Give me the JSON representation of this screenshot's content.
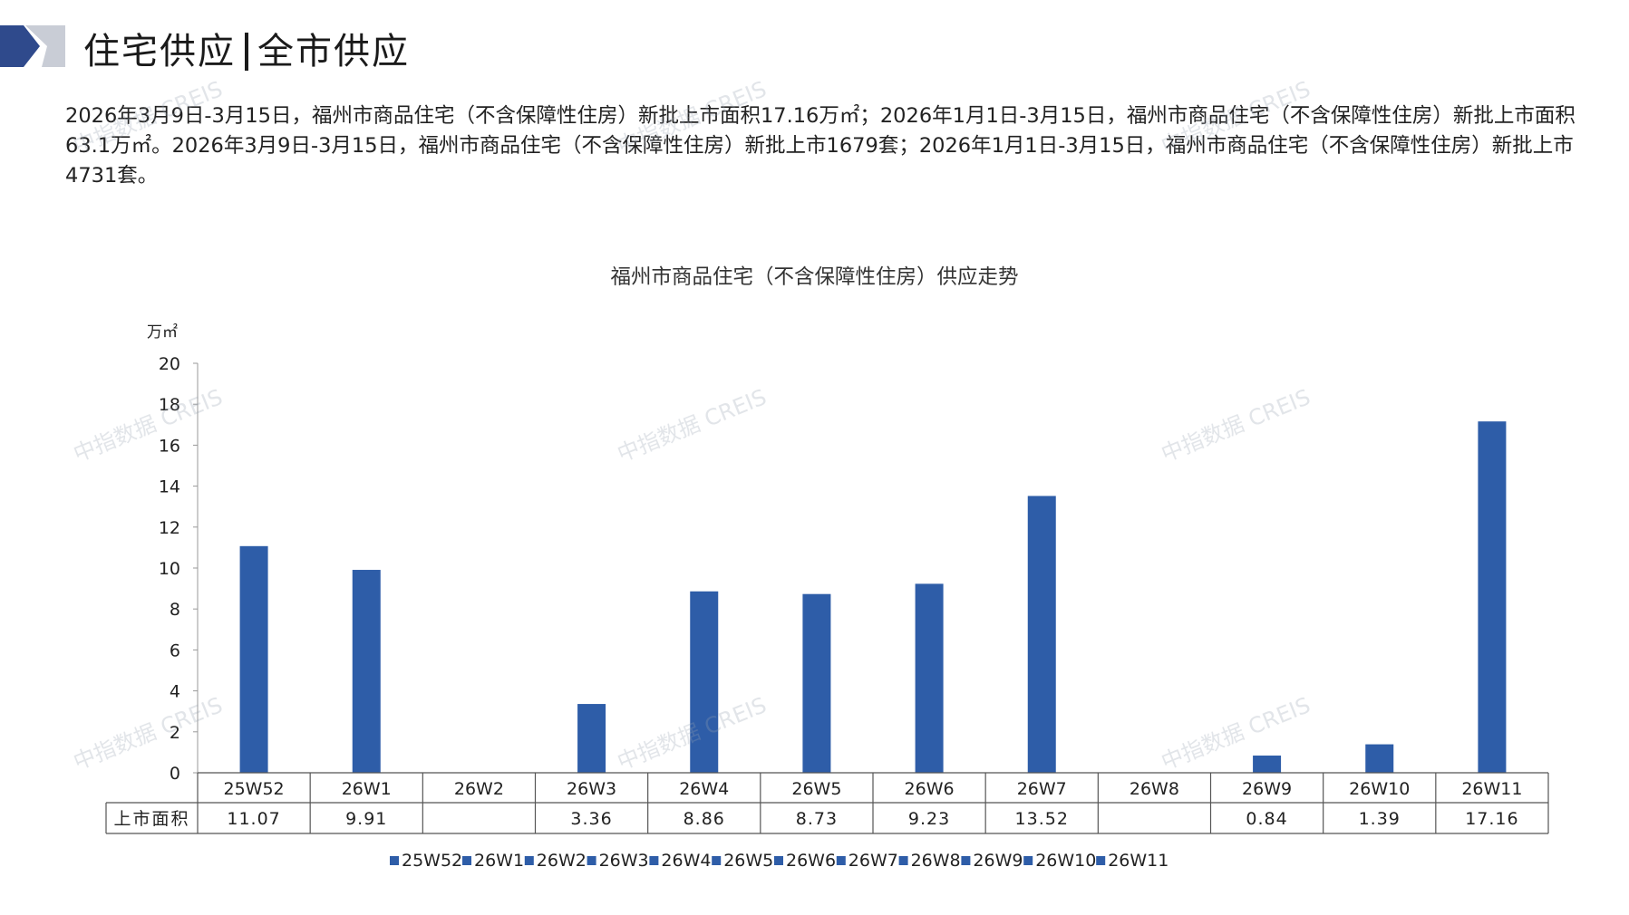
{
  "header": {
    "title_left": "住宅供应",
    "title_right": "全市供应"
  },
  "summary": "2026年3月9日-3月15日，福州市商品住宅（不含保障性住房）新批上市面积17.16万㎡；2026年1月1日-3月15日，福州市商品住宅（不含保障性住房）新批上市面积63.1万㎡。2026年3月9日-3月15日，福州市商品住宅（不含保障性住房）新批上市1679套；2026年1月1日-3月15日，福州市商品住宅（不含保障性住房）新批上市4731套。",
  "watermark": "中指数据 CREIS",
  "colors": {
    "bar": "#2E5DA8",
    "accent_dark": "#2F4A8C",
    "accent_light": "#C9CDD6"
  },
  "chart_data": {
    "type": "bar",
    "title": "福州市商品住宅（不含保障性住房）供应走势",
    "ylabel": "万㎡",
    "ylim": [
      0,
      20
    ],
    "yticks": [
      0,
      2,
      4,
      6,
      8,
      10,
      12,
      14,
      16,
      18,
      20
    ],
    "categories": [
      "25W52",
      "26W1",
      "26W2",
      "26W3",
      "26W4",
      "26W5",
      "26W6",
      "26W7",
      "26W8",
      "26W9",
      "26W10",
      "26W11"
    ],
    "series": [
      {
        "name": "上市面积",
        "values": [
          11.07,
          9.91,
          null,
          3.36,
          8.86,
          8.73,
          9.23,
          13.52,
          null,
          0.84,
          1.39,
          17.16
        ],
        "labels": [
          "11.07",
          "9.91",
          "",
          "3.36",
          "8.86",
          "8.73",
          "9.23",
          "13.52",
          "",
          "0.84",
          "1.39",
          "17.16"
        ]
      }
    ],
    "legend": [
      "25W52",
      "26W1",
      "26W2",
      "26W3",
      "26W4",
      "26W5",
      "26W6",
      "26W7",
      "26W8",
      "26W9",
      "26W10",
      "26W11"
    ],
    "legend_position": "bottom",
    "grid": false,
    "data_table": true
  }
}
